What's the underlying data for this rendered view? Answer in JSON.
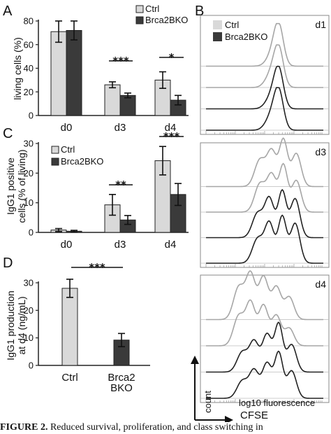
{
  "panel_letters": {
    "a": "A",
    "b": "B",
    "c": "C",
    "d": "D"
  },
  "colors": {
    "ctrl": "#d9d9d9",
    "ko": "#3a3a3a",
    "axis": "#222222",
    "frame": "#888888",
    "hist_ctrl": "#a6a6a6",
    "hist_ko": "#222222"
  },
  "legend": {
    "ctrl": "Ctrl",
    "ko": "Brca2BKO"
  },
  "chart_data": [
    {
      "id": "A",
      "type": "bar",
      "categories": [
        "d0",
        "d3",
        "d4"
      ],
      "series": [
        {
          "name": "Ctrl",
          "values": [
            71,
            26,
            30
          ],
          "errors": [
            9,
            2.5,
            7
          ]
        },
        {
          "name": "Brca2BKO",
          "values": [
            72,
            17,
            13
          ],
          "errors": [
            8,
            2,
            4
          ]
        }
      ],
      "ylabel": "living cells (%)",
      "ylim": [
        0,
        80
      ],
      "yticks": [
        "0",
        "20",
        "40",
        "60",
        "80"
      ],
      "significance": [
        {
          "category": "d3",
          "label": "***"
        },
        {
          "category": "d4",
          "label": "*"
        }
      ],
      "legend_position": "top-right"
    },
    {
      "id": "C",
      "type": "bar",
      "categories": [
        "d0",
        "d3",
        "d4"
      ],
      "series": [
        {
          "name": "Ctrl",
          "values": [
            0.8,
            9.3,
            24.2
          ],
          "errors": [
            0.5,
            3.5,
            4.8
          ]
        },
        {
          "name": "Brca2BKO",
          "values": [
            0.4,
            4.2,
            12.8
          ],
          "errors": [
            0.3,
            1.5,
            3.7
          ]
        }
      ],
      "ylabel": [
        "IgG1 positive",
        "cells (% of living)"
      ],
      "ylim": [
        0,
        30
      ],
      "yticks": [
        "0",
        "10",
        "20",
        "30"
      ],
      "significance": [
        {
          "category": "d3",
          "label": "**"
        },
        {
          "category": "d4",
          "label": "***"
        }
      ],
      "legend_position": "top-left"
    },
    {
      "id": "D",
      "type": "bar",
      "categories": [
        "Ctrl",
        "Brca2\nBKO"
      ],
      "series": [
        {
          "values": [
            28,
            9.2
          ],
          "errors": [
            3.3,
            2.4
          ]
        }
      ],
      "ylabel": [
        "IgG1 production",
        "at d4 (ng/mL)"
      ],
      "ylim": [
        0,
        30
      ],
      "yticks": [
        "0",
        "10",
        "20",
        "30"
      ],
      "significance": [
        {
          "label": "***"
        }
      ]
    },
    {
      "id": "B",
      "type": "line",
      "panels": [
        {
          "label": "d1",
          "profiles": [
            {
              "series": "Ctrl",
              "peaks": [
                [
                  0.62,
                  0.04,
                  0.92
                ],
                [
                  0.57,
                  0.05,
                  0.3
                ]
              ]
            },
            {
              "series": "Ctrl",
              "peaks": [
                [
                  0.62,
                  0.04,
                  0.9
                ],
                [
                  0.56,
                  0.05,
                  0.35
                ]
              ]
            },
            {
              "series": "Brca2BKO",
              "peaks": [
                [
                  0.62,
                  0.04,
                  0.92
                ],
                [
                  0.56,
                  0.05,
                  0.3
                ]
              ]
            },
            {
              "series": "Brca2BKO",
              "peaks": [
                [
                  0.62,
                  0.04,
                  0.9
                ],
                [
                  0.56,
                  0.05,
                  0.35
                ]
              ]
            }
          ]
        },
        {
          "label": "d3",
          "profiles": [
            {
              "series": "Ctrl",
              "peaks": [
                [
                  0.46,
                  0.045,
                  0.55
                ],
                [
                  0.56,
                  0.04,
                  0.72
                ],
                [
                  0.66,
                  0.035,
                  0.95
                ],
                [
                  0.77,
                  0.04,
                  0.68
                ]
              ]
            },
            {
              "series": "Ctrl",
              "peaks": [
                [
                  0.46,
                  0.045,
                  0.58
                ],
                [
                  0.56,
                  0.04,
                  0.75
                ],
                [
                  0.66,
                  0.035,
                  0.95
                ],
                [
                  0.77,
                  0.04,
                  0.65
                ]
              ]
            },
            {
              "series": "Brca2BKO",
              "peaks": [
                [
                  0.44,
                  0.045,
                  0.5
                ],
                [
                  0.54,
                  0.04,
                  0.8
                ],
                [
                  0.65,
                  0.035,
                  0.95
                ],
                [
                  0.76,
                  0.04,
                  0.8
                ]
              ]
            },
            {
              "series": "Brca2BKO",
              "peaks": [
                [
                  0.44,
                  0.045,
                  0.5
                ],
                [
                  0.54,
                  0.04,
                  0.82
                ],
                [
                  0.65,
                  0.035,
                  0.95
                ],
                [
                  0.76,
                  0.04,
                  0.82
                ]
              ]
            }
          ]
        },
        {
          "label": "d4",
          "profiles": [
            {
              "series": "Ctrl",
              "peaks": [
                [
                  0.28,
                  0.045,
                  0.65
                ],
                [
                  0.38,
                  0.04,
                  0.9
                ],
                [
                  0.49,
                  0.04,
                  0.85
                ],
                [
                  0.6,
                  0.04,
                  0.65
                ],
                [
                  0.71,
                  0.04,
                  0.45
                ]
              ]
            },
            {
              "series": "Ctrl",
              "peaks": [
                [
                  0.28,
                  0.045,
                  0.6
                ],
                [
                  0.38,
                  0.04,
                  0.85
                ],
                [
                  0.49,
                  0.04,
                  0.8
                ],
                [
                  0.6,
                  0.04,
                  0.6
                ],
                [
                  0.71,
                  0.04,
                  0.35
                ]
              ]
            },
            {
              "series": "Brca2BKO",
              "peaks": [
                [
                  0.31,
                  0.045,
                  0.4
                ],
                [
                  0.41,
                  0.04,
                  0.6
                ],
                [
                  0.52,
                  0.04,
                  0.75
                ],
                [
                  0.62,
                  0.035,
                  0.95
                ],
                [
                  0.73,
                  0.04,
                  0.55
                ]
              ]
            },
            {
              "series": "Brca2BKO",
              "peaks": [
                [
                  0.31,
                  0.045,
                  0.35
                ],
                [
                  0.41,
                  0.04,
                  0.55
                ],
                [
                  0.52,
                  0.04,
                  0.7
                ],
                [
                  0.62,
                  0.035,
                  0.9
                ],
                [
                  0.73,
                  0.04,
                  0.55
                ]
              ]
            }
          ]
        }
      ],
      "xlabel": "log10 fluorescence",
      "xaxis_title": "CFSE",
      "yaxis_title": "count",
      "legend_position": "top-left"
    }
  ],
  "caption": {
    "prefix": "FIGURE 2.",
    "text": " Reduced survival, proliferation, and class switching in"
  }
}
